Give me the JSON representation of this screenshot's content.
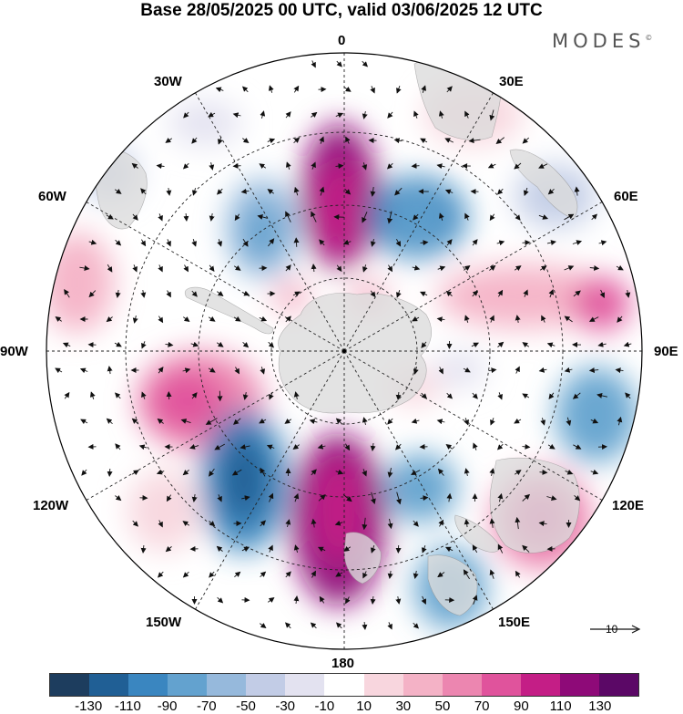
{
  "header": {
    "title": "Base 28/05/2025 00 UTC, valid 03/06/2025 12 UTC",
    "brand": "MODES",
    "brand_mark": "©"
  },
  "map": {
    "projection": "south-polar-stereographic",
    "center": "South Pole",
    "longitude_labels": {
      "lon_0": "0",
      "lon_30e": "30E",
      "lon_60e": "60E",
      "lon_90e": "90E",
      "lon_120e": "120E",
      "lon_150e": "150E",
      "lon_180": "180",
      "lon_150w": "150W",
      "lon_120w": "120W",
      "lon_90w": "90W",
      "lon_60w": "60W",
      "lon_30w": "30W"
    },
    "reference_vector_label": "10"
  },
  "colorbar": {
    "colors": [
      "#1d3d5e",
      "#205f95",
      "#3a86c0",
      "#63a2cf",
      "#96b9dc",
      "#c2cce6",
      "#e3e2f0",
      "#ffffff",
      "#f8d6de",
      "#f4b2c6",
      "#ec86b0",
      "#e0539c",
      "#c41e86",
      "#8e0a78",
      "#5b0866"
    ],
    "tick_labels": [
      "-130",
      "-110",
      "-90",
      "-70",
      "-50",
      "-30",
      "-10",
      "10",
      "30",
      "50",
      "70",
      "90",
      "110",
      "130"
    ]
  },
  "colors": {
    "land": "#dcdcdc",
    "ocean": "#ffffff",
    "arrows": "#111111",
    "grid": "#222222"
  }
}
